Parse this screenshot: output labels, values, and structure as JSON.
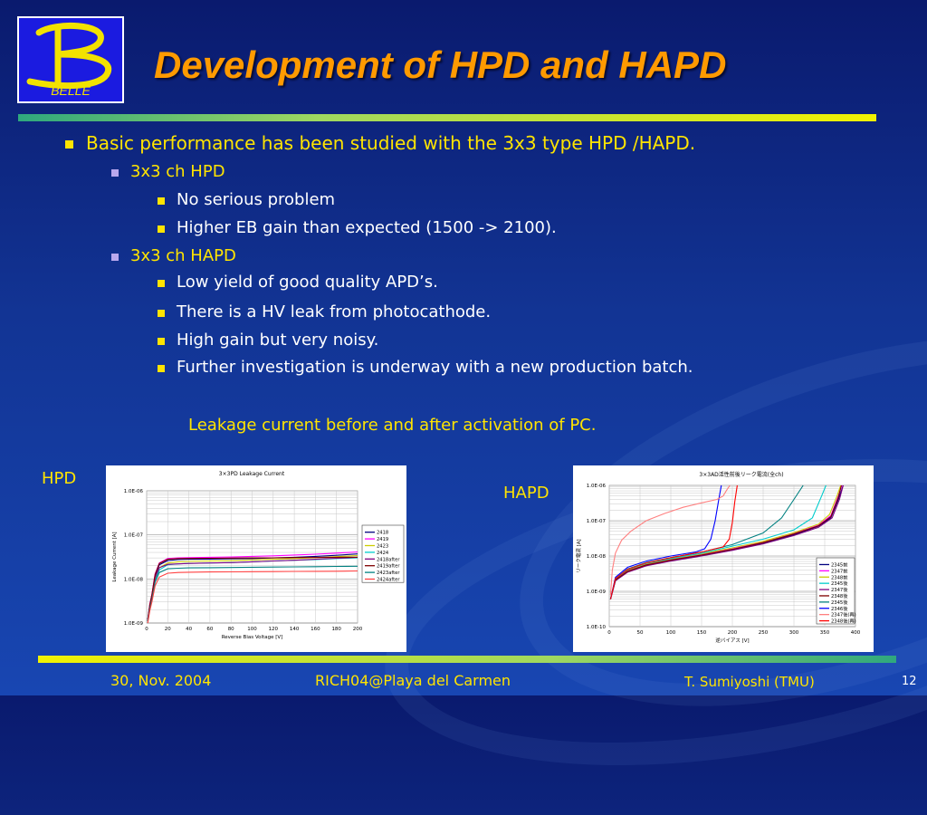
{
  "slide": {
    "title": "Development of HPD and HAPD",
    "logo_text": "BELLE",
    "bullets": {
      "main": "Basic performance has been studied with the 3x3 type HPD /HAPD.",
      "hpd_heading": "3x3 ch HPD",
      "hpd_points": [
        "No serious problem",
        "Higher EB gain than expected (1500 -> 2100)."
      ],
      "hapd_heading": "3x3 ch HAPD",
      "hapd_points": [
        "Low yield of good quality APD’s.",
        "There is a HV leak from photocathode.",
        "High gain but very noisy.",
        "Further investigation is underway with a new production  batch."
      ]
    },
    "caption": "Leakage current before and after activation of PC.",
    "hpd_label": "HPD",
    "hapd_label": "HAPD"
  },
  "footer": {
    "date": "30, Nov. 2004",
    "conference": "RICH04@Playa del Carmen",
    "author": "T. Sumiyoshi (TMU)",
    "page": "12"
  },
  "colors": {
    "title": "#ff9a00",
    "text_yellow": "#ffe400",
    "background": "#123494"
  },
  "chart_data": [
    {
      "type": "line",
      "title": "3×3PD Leakage Current",
      "xlabel": "Reverse Bias Voltage [V]",
      "ylabel": "Leakage Current [A]",
      "xlim": [
        0,
        200
      ],
      "ylim": [
        1e-09,
        1e-06
      ],
      "log_y": true,
      "grid": true,
      "legend": "right",
      "x_ticks": [
        0,
        20,
        40,
        60,
        80,
        100,
        120,
        140,
        160,
        180,
        200
      ],
      "y_ticks": [
        "1.0E-09",
        "1.0E-08",
        "1.0E-07",
        "1.0E-06"
      ],
      "x": [
        1,
        3,
        5,
        8,
        12,
        20,
        30,
        40,
        60,
        80,
        100,
        120,
        140,
        160,
        180,
        200
      ],
      "series": [
        {
          "name": "2418",
          "color": "#000080",
          "values": [
            1.2e-09,
            2.6e-09,
            4.3e-09,
            1.2e-08,
            2.1e-08,
            2.6e-08,
            2.75e-08,
            2.8e-08,
            2.82e-08,
            2.86e-08,
            2.9e-08,
            3e-08,
            3.1e-08,
            3.25e-08,
            3.45e-08,
            3.7e-08
          ]
        },
        {
          "name": "2419",
          "color": "#ff00ff",
          "values": [
            1.2e-09,
            2.7e-09,
            4.5e-09,
            1.3e-08,
            2.3e-08,
            2.9e-08,
            3e-08,
            3.05e-08,
            3.1e-08,
            3.15e-08,
            3.25e-08,
            3.35e-08,
            3.5e-08,
            3.65e-08,
            3.85e-08,
            4.1e-08
          ]
        },
        {
          "name": "2423",
          "color": "#cccc00",
          "values": [
            1.1e-09,
            2.3e-09,
            3.8e-09,
            1e-08,
            1.8e-08,
            2.3e-08,
            2.45e-08,
            2.5e-08,
            2.55e-08,
            2.6e-08,
            2.7e-08,
            2.8e-08,
            2.9e-08,
            3.05e-08,
            3.2e-08,
            3.4e-08
          ]
        },
        {
          "name": "2424",
          "color": "#00cccc",
          "values": [
            1.1e-09,
            2.2e-09,
            3.5e-09,
            9e-09,
            1.6e-08,
            2.1e-08,
            2.2e-08,
            2.25e-08,
            2.3e-08,
            2.35e-08,
            2.45e-08,
            2.55e-08,
            2.65e-08,
            2.75e-08,
            2.9e-08,
            3e-08
          ]
        },
        {
          "name": "2418after",
          "color": "#800080",
          "values": [
            1.1e-09,
            2.3e-09,
            3.9e-09,
            1.05e-08,
            1.8e-08,
            2.15e-08,
            2.2e-08,
            2.25e-08,
            2.3e-08,
            2.35e-08,
            2.45e-08,
            2.55e-08,
            2.65e-08,
            2.8e-08,
            2.95e-08,
            3.1e-08
          ]
        },
        {
          "name": "2419after",
          "color": "#800000",
          "values": [
            1.2e-09,
            2.6e-09,
            4.4e-09,
            1.25e-08,
            2.25e-08,
            2.8e-08,
            2.9e-08,
            2.92e-08,
            2.95e-08,
            2.97e-08,
            3e-08,
            3.02e-08,
            3.05e-08,
            3.08e-08,
            3.1e-08,
            3.12e-08
          ]
        },
        {
          "name": "2423after",
          "color": "#008080",
          "values": [
            1.1e-09,
            2.1e-09,
            3.4e-09,
            8.5e-09,
            1.4e-08,
            1.7e-08,
            1.75e-08,
            1.78e-08,
            1.8e-08,
            1.82e-08,
            1.84e-08,
            1.86e-08,
            1.88e-08,
            1.9e-08,
            1.92e-08,
            1.94e-08
          ]
        },
        {
          "name": "2424after",
          "color": "#ff4040",
          "values": [
            1e-09,
            1.9e-09,
            3e-09,
            7e-09,
            1.1e-08,
            1.35e-08,
            1.4e-08,
            1.42e-08,
            1.44e-08,
            1.45e-08,
            1.46e-08,
            1.47e-08,
            1.48e-08,
            1.49e-08,
            1.5e-08,
            1.52e-08
          ]
        }
      ]
    },
    {
      "type": "line",
      "title": "3×3AD活性前後リーク電流(全ch)",
      "xlabel": "逆バイアス [V]",
      "ylabel": "リーク電流 [A]",
      "xlim": [
        0,
        400
      ],
      "ylim": [
        1e-10,
        1e-06
      ],
      "log_y": true,
      "grid": true,
      "legend": "right",
      "x_ticks": [
        0,
        50,
        100,
        150,
        200,
        250,
        300,
        350,
        400
      ],
      "y_ticks": [
        "1.0E-10",
        "1.0E-09",
        "1.0E-08",
        "1.0E-07",
        "1.0E-06"
      ],
      "series": [
        {
          "name": "2345前",
          "color": "#000080",
          "x": [
            2,
            10,
            30,
            60,
            100,
            150,
            200,
            250,
            300,
            340,
            360,
            372,
            380
          ],
          "values": [
            6e-10,
            2e-09,
            3.6e-09,
            5.5e-09,
            7.5e-09,
            1.05e-08,
            1.5e-08,
            2.3e-08,
            4e-08,
            7e-08,
            1.2e-07,
            4e-07,
            1e-06
          ]
        },
        {
          "name": "2347前",
          "color": "#ff00ff",
          "x": [
            2,
            10,
            30,
            60,
            100,
            150,
            200,
            250,
            300,
            340,
            360,
            372,
            378
          ],
          "values": [
            6e-10,
            2.1e-09,
            3.8e-09,
            5.8e-09,
            8e-09,
            1.1e-08,
            1.6e-08,
            2.5e-08,
            4.4e-08,
            7.5e-08,
            1.4e-07,
            5e-07,
            1e-06
          ]
        },
        {
          "name": "2348前",
          "color": "#cccc00",
          "x": [
            2,
            10,
            30,
            60,
            100,
            150,
            200,
            250,
            300,
            340,
            358,
            370,
            376
          ],
          "values": [
            6e-10,
            2.2e-09,
            4e-09,
            6e-09,
            8.3e-09,
            1.15e-08,
            1.7e-08,
            2.6e-08,
            4.6e-08,
            8e-08,
            1.5e-07,
            5e-07,
            1e-06
          ]
        },
        {
          "name": "2345後",
          "color": "#00cccc",
          "x": [
            2,
            10,
            30,
            60,
            100,
            150,
            200,
            250,
            300,
            330,
            345,
            352
          ],
          "values": [
            6e-10,
            2.2e-09,
            4.1e-09,
            6.2e-09,
            8.5e-09,
            1.2e-08,
            1.9e-08,
            3e-08,
            5.5e-08,
            1.2e-07,
            5e-07,
            1e-06
          ]
        },
        {
          "name": "2347後",
          "color": "#800080",
          "x": [
            2,
            10,
            30,
            60,
            100,
            150,
            200,
            250,
            300,
            340,
            362,
            374,
            380
          ],
          "values": [
            6e-10,
            2e-09,
            3.5e-09,
            5.3e-09,
            7.2e-09,
            1e-08,
            1.45e-08,
            2.2e-08,
            3.8e-08,
            6.5e-08,
            1.2e-07,
            4e-07,
            1e-06
          ]
        },
        {
          "name": "2348後",
          "color": "#800000",
          "x": [
            2,
            10,
            30,
            60,
            100,
            150,
            200,
            250,
            300,
            340,
            360,
            372,
            377
          ],
          "values": [
            6e-10,
            2.1e-09,
            3.7e-09,
            5.6e-09,
            7.7e-09,
            1.07e-08,
            1.55e-08,
            2.4e-08,
            4.2e-08,
            7.2e-08,
            1.3e-07,
            4.5e-07,
            1e-06
          ]
        },
        {
          "name": "2345後",
          "color": "#008080",
          "x": [
            2,
            10,
            30,
            60,
            100,
            150,
            200,
            250,
            280,
            300,
            315
          ],
          "values": [
            6e-10,
            2.3e-09,
            4.3e-09,
            6.5e-09,
            9e-09,
            1.3e-08,
            2.1e-08,
            4.5e-08,
            1.2e-07,
            4e-07,
            1e-06
          ]
        },
        {
          "name": "2346後",
          "color": "#0000ff",
          "x": [
            2,
            10,
            30,
            60,
            100,
            140,
            155,
            165,
            172,
            178,
            182
          ],
          "values": [
            6e-10,
            2.5e-09,
            4.8e-09,
            7.2e-09,
            1e-08,
            1.3e-08,
            1.6e-08,
            3e-08,
            1e-07,
            4e-07,
            1e-06
          ]
        },
        {
          "name": "2347後(再)",
          "color": "#ff8080",
          "x": [
            2,
            5,
            10,
            20,
            35,
            60,
            90,
            120,
            150,
            175,
            185,
            192,
            196
          ],
          "values": [
            8e-10,
            4e-09,
            1.2e-08,
            2.8e-08,
            5e-08,
            1e-07,
            1.6e-07,
            2.4e-07,
            3.2e-07,
            4e-07,
            5e-07,
            8e-07,
            1e-06
          ]
        },
        {
          "name": "2348後(再)",
          "color": "#ff0000",
          "x": [
            2,
            10,
            30,
            60,
            100,
            150,
            185,
            195,
            200,
            204,
            208
          ],
          "values": [
            6e-10,
            2.3e-09,
            4.2e-09,
            6.4e-09,
            9e-09,
            1.3e-08,
            1.8e-08,
            3e-08,
            9e-08,
            3.5e-07,
            1e-06
          ]
        }
      ]
    }
  ]
}
